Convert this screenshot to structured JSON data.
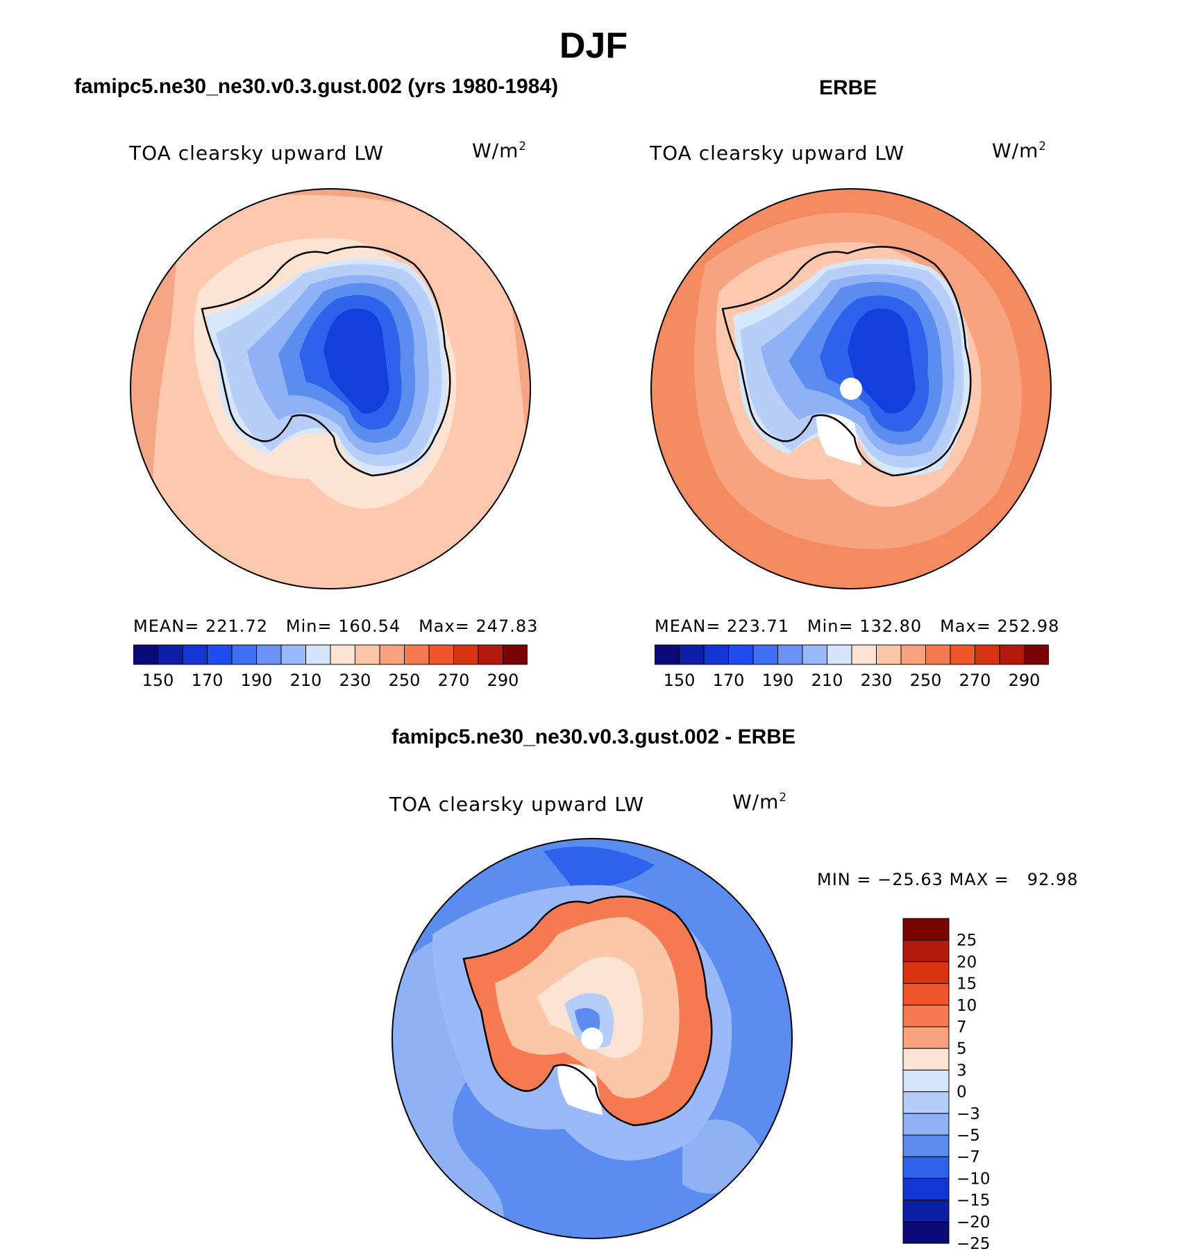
{
  "page": {
    "season": "DJF",
    "diff_title": "famipc5.ne30_ne30.v0.3.gust.002 - ERBE"
  },
  "panels": [
    {
      "title": "famipc5.ne30_ne30.v0.3.gust.002 (yrs 1980-1984)",
      "variable": "TOA clearsky upward LW",
      "units": "W/m",
      "units_exp": "2",
      "stats": {
        "mean_label": "MEAN=",
        "mean": "221.72",
        "min_label": "Min=",
        "min": "160.54",
        "max_label": "Max=",
        "max": "247.83"
      },
      "regions": {
        "ocean_outer": "#f4a584",
        "ocean_mid": "#fdc8ad",
        "ice_edge": "#fde3d2",
        "coast": "#d6e6fb",
        "land_1": "#b7cff8",
        "land_2": "#8fb1f5",
        "land_3": "#5b8cf0",
        "land_4": "#2f62ea",
        "land_5": "#143fdc"
      }
    },
    {
      "title": "ERBE",
      "variable": "TOA clearsky upward LW",
      "units": "W/m",
      "units_exp": "2",
      "stats": {
        "mean_label": "MEAN=",
        "mean": "223.71",
        "min_label": "Min=",
        "min": "132.80",
        "max_label": "Max=",
        "max": "252.98"
      },
      "regions": {
        "ocean_outer": "#f48a60",
        "ocean_mid": "#f7a37f",
        "ice_edge": "#fdc8ad",
        "coast": "#d6e6fb",
        "land_1": "#b7cff8",
        "land_2": "#8fb1f5",
        "land_3": "#5b8cf0",
        "land_4": "#2f62ea",
        "land_5": "#143fdc"
      }
    }
  ],
  "diff_panel": {
    "variable": "TOA clearsky upward LW",
    "units": "W/m",
    "units_exp": "2",
    "stats": {
      "min_label": "MIN =",
      "min": "−25.63",
      "max_label": "MAX =",
      "max": "92.98"
    }
  },
  "abs_colorbar": {
    "colors": [
      "#0a0a78",
      "#0c1fa6",
      "#1335d3",
      "#1f4cf0",
      "#3f6ff3",
      "#6a92f5",
      "#9bb8f8",
      "#d3e4fb",
      "#fde3d2",
      "#fcc6a9",
      "#f9a37e",
      "#f67a51",
      "#f0562a",
      "#d93412",
      "#b31a0b",
      "#7a0303"
    ],
    "ticks": [
      "150",
      "170",
      "190",
      "210",
      "230",
      "250",
      "270",
      "290"
    ]
  },
  "diff_colorbar": {
    "colors": [
      "#7a0303",
      "#b31a0b",
      "#d93412",
      "#f0562a",
      "#f67a51",
      "#f9a37e",
      "#fde3d2",
      "#d3e4fb",
      "#b4cdf8",
      "#8fb1f5",
      "#5b8cf0",
      "#2f62ea",
      "#1335d3",
      "#0c1fa6",
      "#0a0a78"
    ],
    "ticks": [
      "25",
      "20",
      "15",
      "10",
      "7",
      "5",
      "3",
      "0",
      "−3",
      "−5",
      "−7",
      "−10",
      "−15",
      "−20",
      "−25"
    ]
  }
}
